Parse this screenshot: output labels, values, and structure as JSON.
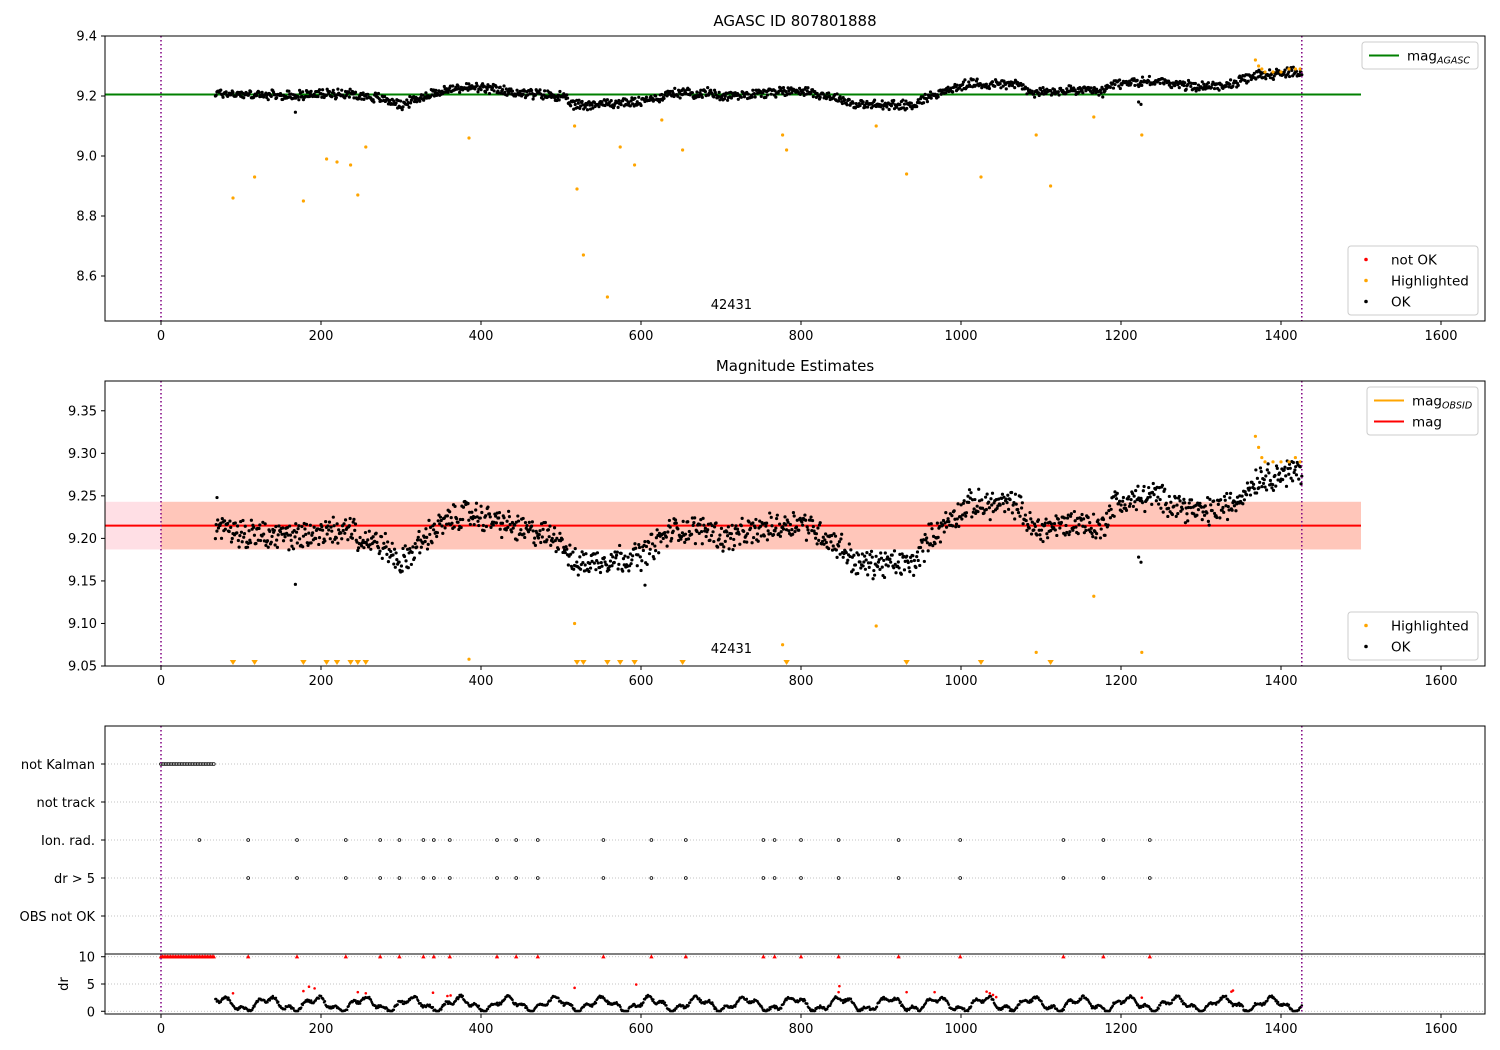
{
  "figure": {
    "obsid_annotation": "42431"
  },
  "colors": {
    "ok": "#000000",
    "highlighted": "#ffa500",
    "not_ok": "#ff0000",
    "agasc_line": "#008000",
    "obsid_line": "#ffa500",
    "mag_line": "#ff0000",
    "band_pink": "#ffc0cb",
    "band_salmon": "#ffa07a",
    "boundary": "#800080",
    "grid": "#b0b0b0"
  },
  "chart_data": [
    {
      "type": "scatter",
      "title": "AGASC ID 807801888",
      "xlim": [
        -70,
        1655
      ],
      "ylim": [
        8.45,
        9.4
      ],
      "xticks": [
        0,
        200,
        400,
        600,
        800,
        1000,
        1200,
        1400,
        1600
      ],
      "yticks": [
        8.6,
        8.8,
        9.0,
        9.2,
        9.4
      ],
      "ytick_labels": [
        "8.6",
        "8.8",
        "9.0",
        "9.2",
        "9.4"
      ],
      "hlines": [
        {
          "name": "mag_AGASC",
          "y": 9.205,
          "x": [
            -70,
            1500
          ],
          "color": "#008000"
        }
      ],
      "vlines": [
        0,
        1426
      ],
      "annotation": {
        "text": "42431",
        "x": 713,
        "y": 8.49
      },
      "legend_top": {
        "position": "top-right",
        "entries": [
          {
            "label": "mag",
            "sub": "AGASC",
            "kind": "line",
            "color": "#008000"
          }
        ]
      },
      "legend_bottom": {
        "position": "bottom-right",
        "entries": [
          {
            "label": "not OK",
            "color": "#ff0000"
          },
          {
            "label": "Highlighted",
            "color": "#ffa500"
          },
          {
            "label": "OK",
            "color": "#000000"
          }
        ]
      },
      "series": [
        {
          "name": "OK",
          "color": "#000000",
          "model": "ok",
          "x_start": 68,
          "x_end": 1426,
          "count": 1420
        },
        {
          "name": "Highlighted",
          "color": "#ffa500",
          "x": [
            90,
            117,
            178,
            207,
            220,
            237,
            246,
            256,
            385,
            517,
            520,
            528,
            558,
            574,
            592,
            626,
            652,
            777,
            782,
            894,
            932,
            1025,
            1094,
            1112,
            1166,
            1226,
            1368,
            1372,
            1376,
            1380,
            1390,
            1400,
            1410,
            1418,
            1424
          ],
          "y": [
            8.86,
            8.93,
            8.85,
            8.99,
            8.98,
            8.97,
            8.87,
            9.03,
            9.06,
            9.1,
            8.89,
            8.67,
            8.53,
            9.03,
            8.97,
            9.12,
            9.02,
            9.07,
            9.02,
            9.1,
            8.94,
            8.93,
            9.07,
            8.9,
            9.13,
            9.07,
            9.32,
            9.3,
            9.29,
            9.28,
            9.28,
            9.28,
            9.29,
            9.29,
            9.29
          ]
        }
      ]
    },
    {
      "type": "scatter",
      "title": "Magnitude Estimates",
      "xlim": [
        -70,
        1655
      ],
      "ylim": [
        9.05,
        9.385
      ],
      "xticks": [
        0,
        200,
        400,
        600,
        800,
        1000,
        1200,
        1400,
        1600
      ],
      "yticks": [
        9.05,
        9.1,
        9.15,
        9.2,
        9.25,
        9.3,
        9.35
      ],
      "ytick_labels": [
        "9.05",
        "9.10",
        "9.15",
        "9.20",
        "9.25",
        "9.30",
        "9.35"
      ],
      "bands": [
        {
          "y": [
            9.187,
            9.243
          ],
          "x": [
            -70,
            1500
          ],
          "color": "#ffc0cb",
          "alpha": 0.5
        },
        {
          "y": [
            9.187,
            9.243
          ],
          "x": [
            0,
            1500
          ],
          "color": "#ffa07a",
          "alpha": 0.4
        }
      ],
      "hlines": [
        {
          "name": "mag",
          "y": 9.215,
          "x": [
            -70,
            1500
          ],
          "color": "#ff0000"
        }
      ],
      "vlines": [
        0,
        1426
      ],
      "annotation": {
        "text": "42431",
        "x": 713,
        "y": 9.065
      },
      "legend_top": {
        "position": "top-right",
        "entries": [
          {
            "label": "mag",
            "sub": "OBSID",
            "kind": "line",
            "color": "#ffa500"
          },
          {
            "label": "mag",
            "kind": "line",
            "color": "#ff0000"
          }
        ]
      },
      "legend_bottom": {
        "position": "bottom-right",
        "entries": [
          {
            "label": "Highlighted",
            "color": "#ffa500"
          },
          {
            "label": "OK",
            "color": "#000000"
          }
        ]
      },
      "series": [
        {
          "name": "OK",
          "color": "#000000",
          "model": "ok",
          "x_start": 68,
          "x_end": 1426,
          "count": 1420
        },
        {
          "name": "Highlighted",
          "color": "#ffa500",
          "x": [
            385,
            517,
            777,
            894,
            1094,
            1166,
            1226,
            1368,
            1372,
            1376,
            1380,
            1390,
            1400,
            1410,
            1418,
            1424
          ],
          "y": [
            9.058,
            9.1,
            9.075,
            9.097,
            9.066,
            9.132,
            9.066,
            9.32,
            9.307,
            9.295,
            9.29,
            9.29,
            9.29,
            9.29,
            9.295,
            9.29
          ]
        },
        {
          "name": "Highlighted (clipped)",
          "marker": "triangle-down",
          "color": "#ffa500",
          "y_at_axis": 9.05,
          "x": [
            90,
            117,
            178,
            207,
            220,
            237,
            246,
            256,
            520,
            528,
            558,
            574,
            592,
            652,
            782,
            932,
            1025,
            1112
          ]
        }
      ]
    },
    {
      "type": "scatter",
      "title": "",
      "xlim": [
        -70,
        1655
      ],
      "categories": [
        "not Kalman",
        "not track",
        "Ion. rad.",
        "dr > 5",
        "OBS not OK"
      ],
      "vlines": [
        0,
        1426
      ],
      "series": [
        {
          "category": "not Kalman",
          "marker": "open-circle",
          "x_start": 0,
          "x_end": 66,
          "step": 2
        },
        {
          "category": "Ion. rad.",
          "marker": "open-circle",
          "x": [
            48,
            109,
            170,
            231,
            274,
            298,
            328,
            341,
            361,
            420,
            444,
            471,
            553,
            613,
            656,
            753,
            767,
            800,
            847,
            922,
            999,
            1128,
            1178,
            1236
          ]
        },
        {
          "category": "dr > 5",
          "marker": "open-circle",
          "x": [
            109,
            170,
            231,
            274,
            298,
            328,
            341,
            361,
            420,
            444,
            471,
            553,
            613,
            656,
            753,
            767,
            800,
            847,
            922,
            999,
            1128,
            1178,
            1236
          ]
        }
      ]
    },
    {
      "type": "scatter",
      "title": "",
      "xlim": [
        -70,
        1655
      ],
      "ylim": [
        -0.5,
        10.5
      ],
      "xticks": [
        0,
        200,
        400,
        600,
        800,
        1000,
        1200,
        1400,
        1600
      ],
      "yticks": [
        0,
        5,
        10
      ],
      "ytick_labels": [
        "0",
        "5",
        "10"
      ],
      "ylabel": "dr",
      "vlines": [
        0,
        1426
      ],
      "series": [
        {
          "name": "capped (dr > 10)",
          "marker": "triangle-up",
          "color": "#ff0000",
          "y": 10,
          "x_start": 0,
          "x_end": 66,
          "step": 2,
          "x": [
            109,
            170,
            231,
            274,
            298,
            328,
            341,
            361,
            420,
            444,
            471,
            553,
            613,
            656,
            753,
            767,
            800,
            847,
            922,
            999,
            1128,
            1178,
            1236
          ]
        },
        {
          "name": "dr OK",
          "color": "#000000",
          "model": "dr",
          "x_start": 68,
          "x_end": 1426,
          "count": 1420
        },
        {
          "name": "dr not OK",
          "color": "#ff0000",
          "x": [
            90,
            178,
            185,
            192,
            246,
            256,
            340,
            358,
            362,
            517,
            594,
            847,
            848,
            932,
            967,
            1032,
            1036,
            1040,
            1044,
            1226,
            1338,
            1340
          ],
          "y": [
            3.3,
            3.7,
            4.5,
            4.2,
            3.5,
            3.3,
            3.4,
            2.8,
            2.9,
            4.3,
            4.9,
            3.5,
            4.6,
            3.5,
            3.5,
            3.6,
            3.3,
            3.0,
            2.6,
            2.5,
            3.6,
            3.8
          ]
        }
      ]
    }
  ]
}
